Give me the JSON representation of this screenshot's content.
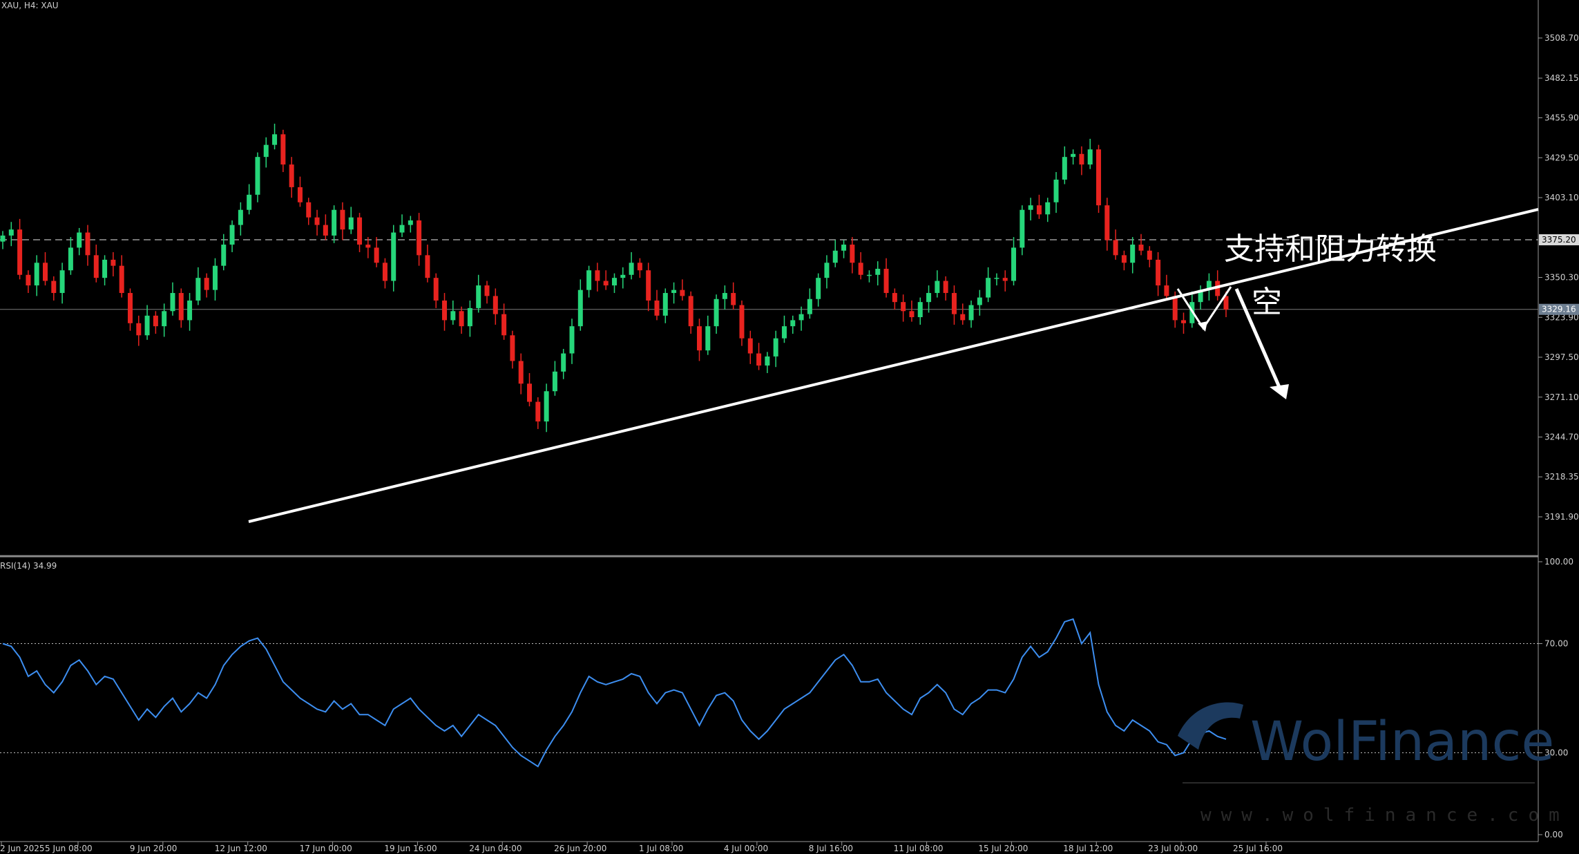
{
  "header": {
    "symbol_label": "XAU, H4: XAU"
  },
  "rsi_panel": {
    "label": "RSI(14) 34.99"
  },
  "annotations": {
    "support_resistance": "支持和阻力转换",
    "short": "空"
  },
  "watermark": {
    "brand": "WolFinance",
    "url": "www.wolfinance.com"
  },
  "colors": {
    "background": "#000000",
    "bull": "#26d67a",
    "bear": "#e8231f",
    "rsi": "#3d8ef0",
    "text": "#d0d0d0"
  },
  "chart_data": [
    {
      "type": "candlestick",
      "price_axis": {
        "ticks": [
          "3508.70",
          "3482.15",
          "3455.90",
          "3429.50",
          "3403.10",
          "3350.30",
          "3323.90",
          "3297.50",
          "3271.10",
          "3244.70",
          "3218.35",
          "3191.90"
        ],
        "range": [
          3165,
          3530
        ]
      },
      "price_labels": {
        "resistance": "3375.20",
        "current": "3329.16"
      },
      "levels": {
        "resistance": 3375.2,
        "current": 3329.16
      },
      "time_labels": [
        "2 Jun 2025",
        "5 Jun 08:00",
        "9 Jun 20:00",
        "12 Jun 12:00",
        "17 Jun 00:00",
        "19 Jun 16:00",
        "24 Jun 04:00",
        "26 Jun 20:00",
        "1 Jul 08:00",
        "4 Jul 00:00",
        "8 Jul 16:00",
        "11 Jul 08:00",
        "15 Jul 20:00",
        "18 Jul 12:00",
        "23 Jul 00:00",
        "25 Jul 16:00"
      ],
      "closes": [
        3378,
        3382,
        3352,
        3345,
        3360,
        3348,
        3340,
        3355,
        3370,
        3380,
        3365,
        3350,
        3362,
        3358,
        3340,
        3320,
        3312,
        3325,
        3318,
        3328,
        3340,
        3322,
        3335,
        3350,
        3342,
        3358,
        3372,
        3385,
        3395,
        3405,
        3430,
        3438,
        3445,
        3425,
        3410,
        3400,
        3390,
        3385,
        3378,
        3395,
        3382,
        3390,
        3372,
        3370,
        3360,
        3348,
        3380,
        3385,
        3388,
        3365,
        3350,
        3335,
        3322,
        3328,
        3318,
        3330,
        3345,
        3338,
        3326,
        3312,
        3295,
        3280,
        3268,
        3255,
        3275,
        3288,
        3300,
        3318,
        3342,
        3355,
        3348,
        3345,
        3350,
        3352,
        3360,
        3355,
        3335,
        3325,
        3340,
        3342,
        3338,
        3318,
        3302,
        3318,
        3336,
        3340,
        3332,
        3310,
        3300,
        3292,
        3298,
        3310,
        3318,
        3322,
        3326,
        3336,
        3350,
        3360,
        3368,
        3372,
        3360,
        3352,
        3352,
        3356,
        3340,
        3334,
        3328,
        3324,
        3334,
        3340,
        3348,
        3340,
        3326,
        3322,
        3332,
        3337,
        3350,
        3350,
        3348,
        3370,
        3395,
        3398,
        3392,
        3400,
        3415,
        3430,
        3432,
        3425,
        3435,
        3398,
        3375,
        3365,
        3360,
        3372,
        3368,
        3362,
        3345,
        3338,
        3322,
        3320,
        3334,
        3342,
        3348,
        3338,
        3329
      ],
      "rsi": {
        "levels": [
          70,
          30
        ],
        "axis_ticks": [
          "100.00",
          "70.00",
          "30.00",
          "0.00"
        ],
        "range": [
          0,
          100
        ],
        "values": [
          70,
          69,
          65,
          58,
          60,
          55,
          52,
          56,
          62,
          64,
          60,
          55,
          58,
          57,
          52,
          47,
          42,
          46,
          43,
          47,
          50,
          45,
          48,
          52,
          50,
          55,
          62,
          66,
          69,
          71,
          72,
          68,
          62,
          56,
          53,
          50,
          48,
          46,
          45,
          49,
          46,
          48,
          44,
          44,
          42,
          40,
          46,
          48,
          50,
          46,
          43,
          40,
          38,
          40,
          36,
          40,
          44,
          42,
          40,
          36,
          32,
          29,
          27,
          25,
          31,
          36,
          40,
          45,
          52,
          58,
          56,
          55,
          56,
          57,
          59,
          58,
          52,
          48,
          52,
          53,
          52,
          46,
          40,
          46,
          51,
          52,
          49,
          42,
          38,
          35,
          38,
          42,
          46,
          48,
          50,
          52,
          56,
          60,
          64,
          66,
          62,
          56,
          56,
          57,
          52,
          49,
          46,
          44,
          50,
          52,
          55,
          52,
          46,
          44,
          48,
          50,
          53,
          53,
          52,
          57,
          65,
          69,
          65,
          67,
          72,
          78,
          79,
          70,
          74,
          55,
          45,
          40,
          38,
          42,
          40,
          38,
          34,
          33,
          29,
          30,
          35,
          37,
          38,
          36,
          34.99
        ]
      }
    }
  ]
}
